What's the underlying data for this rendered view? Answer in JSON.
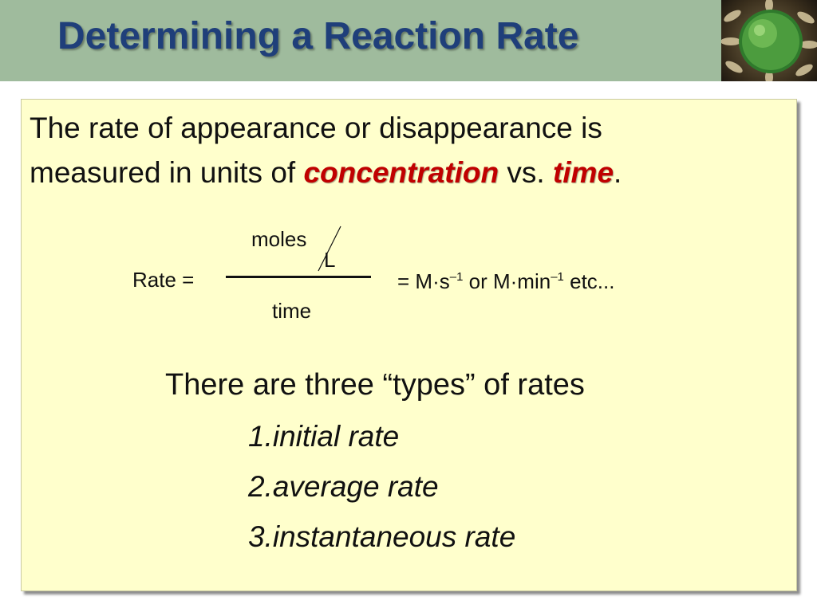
{
  "title": "Determining a Reaction Rate",
  "intro": {
    "line1": "The rate of appearance or disappearance is",
    "line2_prefix": "measured in units of ",
    "concentration": "concentration",
    "vs": " vs. ",
    "time": "time",
    "period": "."
  },
  "equation": {
    "rate_label": "Rate =",
    "numerator": "moles",
    "numerator_denominator": "L",
    "denominator": "time",
    "units_prefix": "= M·s",
    "exp1": "–1",
    "units_mid": " or  M·min",
    "exp2": "–1",
    "units_suffix": " etc..."
  },
  "types": {
    "heading_prefix": "There are three ",
    "open_quote": "“",
    "heading_word": "types",
    "close_quote": "”",
    "heading_suffix": " of rates",
    "items": [
      "1.initial rate",
      "2.average rate",
      "3.instantaneous rate"
    ]
  }
}
